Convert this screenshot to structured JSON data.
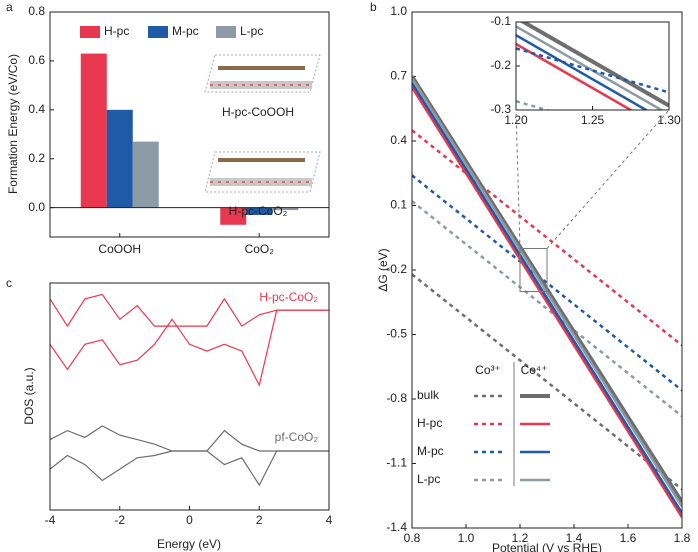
{
  "chart_data": [
    {
      "type": "bar",
      "label": "a",
      "ylabel": "Formation Energy (eV/Co)",
      "categories": [
        "CoOOH",
        "CoO₂"
      ],
      "series": [
        {
          "name": "H-pc",
          "color": "#e8384f",
          "values": [
            0.63,
            -0.07
          ]
        },
        {
          "name": "M-pc",
          "color": "#1f5aa6",
          "values": [
            0.4,
            -0.03
          ]
        },
        {
          "name": "L-pc",
          "color": "#8c9ba5",
          "values": [
            0.27,
            -0.01
          ]
        }
      ],
      "ylim": [
        -0.12,
        0.8
      ],
      "yticks": [
        {
          "value": 0,
          "label": "0.0"
        },
        0.2,
        0.4,
        0.6,
        0.8
      ],
      "annotations": [
        "H-pc-CoOOH",
        "H-pc-CoO₂"
      ]
    },
    {
      "type": "line",
      "label": "b",
      "xlabel": "Potential (V vs RHE)",
      "ylabel": "ΔG (eV)",
      "x": [
        0.8,
        1.8
      ],
      "series": [
        {
          "name": "bulk",
          "color": "#6e6e6e",
          "dash": true,
          "values": [
            -0.22,
            -1.22
          ]
        },
        {
          "name": "H-pc",
          "color": "#e8384f",
          "dash": true,
          "values": [
            0.45,
            -0.55
          ]
        },
        {
          "name": "M-pc",
          "color": "#1f5aa6",
          "dash": true,
          "values": [
            0.24,
            -0.76
          ]
        },
        {
          "name": "L-pc",
          "color": "#8c9ba5",
          "dash": true,
          "values": [
            0.12,
            -0.88
          ]
        },
        {
          "color": "#6e6e6e",
          "dash": false,
          "values": [
            0.7,
            -1.28
          ]
        },
        {
          "color": "#e8384f",
          "dash": false,
          "values": [
            0.65,
            -1.35
          ]
        },
        {
          "color": "#1f5aa6",
          "dash": false,
          "values": [
            0.67,
            -1.33
          ]
        },
        {
          "color": "#8c9ba5",
          "dash": false,
          "values": [
            0.69,
            -1.3
          ]
        }
      ],
      "legend_columns": [
        "Co³⁺",
        "Co⁴⁺"
      ],
      "xlim": [
        0.8,
        1.8
      ],
      "xticks": [
        0.8,
        {
          "value": 1.0,
          "label": "1.0"
        },
        1.2,
        1.4,
        1.6,
        1.8
      ],
      "ylim": [
        -1.4,
        1.0
      ],
      "yticks": [
        -1.4,
        -1.1,
        -0.8,
        -0.5,
        -0.2,
        0.1,
        0.4,
        0.7,
        {
          "value": 1.0,
          "label": "1.0"
        }
      ]
    },
    {
      "type": "line",
      "inset": true,
      "x": [
        1.2,
        1.3
      ],
      "series": [
        {
          "color": "#6e6e6e",
          "dash": false,
          "values": [
            -0.09,
            -0.29
          ]
        },
        {
          "color": "#8c9ba5",
          "dash": false,
          "values": [
            -0.11,
            -0.31
          ]
        },
        {
          "color": "#1f5aa6",
          "dash": false,
          "values": [
            -0.13,
            -0.33
          ]
        },
        {
          "color": "#e8384f",
          "dash": false,
          "values": [
            -0.15,
            -0.35
          ]
        },
        {
          "color": "#1f5aa6",
          "dash": true,
          "values": [
            -0.16,
            -0.26
          ]
        },
        {
          "color": "#8c9ba5",
          "dash": true,
          "values": [
            -0.28,
            -0.38
          ]
        }
      ],
      "xlim": [
        1.2,
        1.3
      ],
      "xticks": [
        {
          "value": 1.2,
          "label": "1.20"
        },
        1.25,
        {
          "value": 1.3,
          "label": "1.30"
        }
      ],
      "ylim": [
        -0.3,
        -0.1
      ],
      "yticks": [
        -0.3,
        -0.2,
        -0.1
      ]
    },
    {
      "type": "line",
      "label": "c",
      "xlabel": "Energy (eV)",
      "ylabel": "DOS (a.u.)",
      "x": [
        -4,
        -3.5,
        -3,
        -2.5,
        -2,
        -1.5,
        -1,
        -0.5,
        0,
        0.5,
        1,
        1.5,
        2,
        2.5,
        3,
        3.5,
        4
      ],
      "series": [
        {
          "name": "H-pc-CoO₂",
          "color": "#e8384f",
          "values": [
            9.3,
            8.1,
            9.3,
            9.5,
            8.4,
            9.0,
            8.1,
            8.1,
            8.1,
            8.1,
            9.3,
            8.1,
            8.6,
            8.8,
            8.8,
            8.8,
            8.8
          ]
        },
        {
          "color": "#e8384f",
          "values": [
            7.3,
            6.2,
            7.3,
            7.5,
            6.4,
            6.6,
            7.3,
            8.4,
            7.3,
            7.0,
            7.3,
            7.0,
            5.5,
            8.8,
            8.8,
            8.8,
            8.8
          ]
        },
        {
          "name": "pf-CoO₂",
          "color": "#6e6e6e",
          "values": [
            3.1,
            3.5,
            3.2,
            3.7,
            3.3,
            3.1,
            2.9,
            2.6,
            2.6,
            2.6,
            3.5,
            2.9,
            2.6,
            2.6,
            2.6,
            2.6,
            2.6
          ]
        },
        {
          "color": "#6e6e6e",
          "values": [
            1.8,
            2.4,
            2.0,
            1.3,
            1.8,
            2.3,
            2.4,
            2.6,
            2.6,
            2.6,
            2.0,
            2.3,
            1.1,
            2.6,
            2.6,
            2.6,
            2.6
          ]
        }
      ],
      "xlim": [
        -4,
        4
      ],
      "xticks": [
        -4,
        -2,
        0,
        2,
        4
      ],
      "ylim": [
        0,
        10
      ]
    }
  ]
}
